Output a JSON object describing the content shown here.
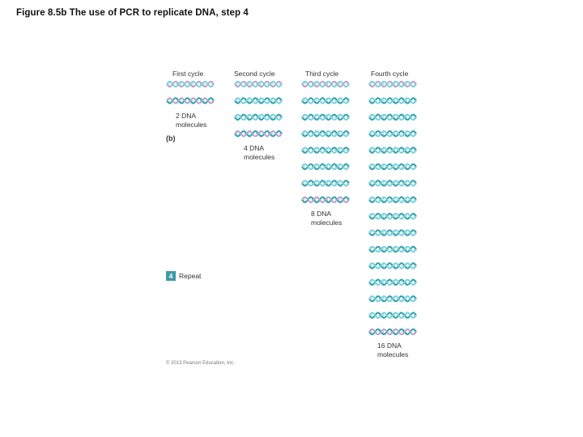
{
  "title": "Figure 8.5b  The use of PCR to replicate DNA, step 4",
  "panel_label": "(b)",
  "step": {
    "number": "4",
    "text": "Repeat"
  },
  "copyright": "© 2013 Pearson Education, Inc.",
  "colors": {
    "strand_original": "#7fd0d8",
    "strand_new": "#2aa3b0",
    "strand_pale": "#b9a3c9",
    "step_box": "#3e9aa7"
  },
  "cycles": [
    {
      "header": "First cycle",
      "molecule_label": "2 DNA\nmolecules",
      "molecules": 2
    },
    {
      "header": "Second cycle",
      "molecule_label": "4 DNA\nmolecules",
      "molecules": 4
    },
    {
      "header": "Third cycle",
      "molecule_label": "8 DNA\nmolecules",
      "molecules": 8
    },
    {
      "header": "Fourth cycle",
      "molecule_label": "16 DNA\nmolecules",
      "molecules": 16
    }
  ]
}
